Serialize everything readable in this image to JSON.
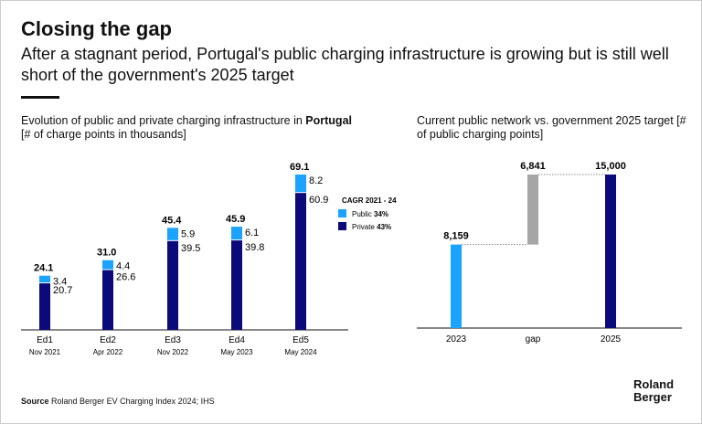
{
  "title": "Closing the gap",
  "subtitle": "After a stagnant period, Portugal's public charging infrastructure is growing but is still well short of the government's 2025 target",
  "colors": {
    "public": "#1aa3ff",
    "private": "#0a0a7a",
    "gap": "#a6a6a6"
  },
  "source_label": "Source",
  "source_text": "Roland Berger EV Charging Index 2024; IHS",
  "logo": "Roland Berger",
  "chart_data": [
    {
      "type": "bar",
      "stacked": true,
      "title_prefix": "Evolution of public and private charging infrastructure in ",
      "title_bold": "Portugal",
      "title_suffix": "[# of charge points in thousands]",
      "categories": [
        "Ed1",
        "Ed2",
        "Ed3",
        "Ed4",
        "Ed5"
      ],
      "sublabels": [
        "Nov 2021",
        "Apr 2022",
        "Nov 2022",
        "May 2023",
        "May 2024"
      ],
      "totals": [
        "24.1",
        "31.0",
        "45.4",
        "45.9",
        "69.1"
      ],
      "series": [
        {
          "name": "Private",
          "values": [
            20.7,
            26.6,
            39.5,
            39.8,
            60.9
          ],
          "cagr": "43%"
        },
        {
          "name": "Public",
          "values": [
            3.4,
            4.4,
            5.9,
            6.1,
            8.2
          ],
          "cagr": "34%"
        }
      ],
      "legend_title": "CAGR 2021 - 24",
      "legend": "right"
    },
    {
      "type": "waterfall",
      "title": "Current public network vs. government 2025 target [# of public charging points]",
      "categories": [
        "2023",
        "gap",
        "2025"
      ],
      "values": [
        8159,
        6841,
        15000
      ],
      "labels": [
        "8,159",
        "6,841",
        "15,000"
      ]
    }
  ]
}
